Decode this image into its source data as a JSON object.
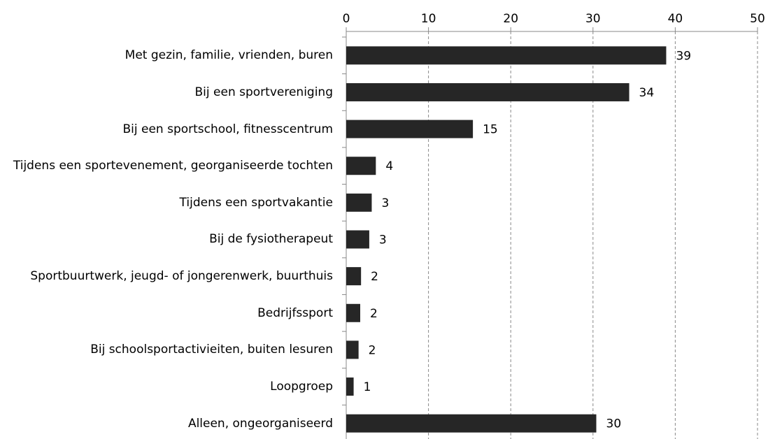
{
  "chart_data": {
    "type": "bar",
    "orientation": "horizontal",
    "categories": [
      "Met gezin, familie, vrienden, buren",
      "Bij een sportvereniging",
      "Bij een sportschool, fitnesscentrum",
      "Tijdens een sportevenement, georganiseerde tochten",
      "Tijdens een sportvakantie",
      "Bij de fysiotherapeut",
      "Sportbuurtwerk, jeugd- of jongerenwerk, buurthuis",
      "Bedrijfssport",
      "Bij schoolsportactivieiten, buiten lesuren",
      "Loopgroep",
      "Alleen, ongeorganiseerd"
    ],
    "values": [
      38.9,
      34.4,
      15.4,
      3.6,
      3.1,
      2.8,
      1.8,
      1.7,
      1.5,
      0.9,
      30.4
    ],
    "value_labels": [
      "39",
      "34",
      "15",
      "4",
      "3",
      "3",
      "2",
      "2",
      "2",
      "1",
      "30"
    ],
    "color": "#262626",
    "xlim": [
      0,
      50
    ],
    "xticks": [
      0,
      10,
      20,
      30,
      40,
      50
    ],
    "grid": true
  }
}
